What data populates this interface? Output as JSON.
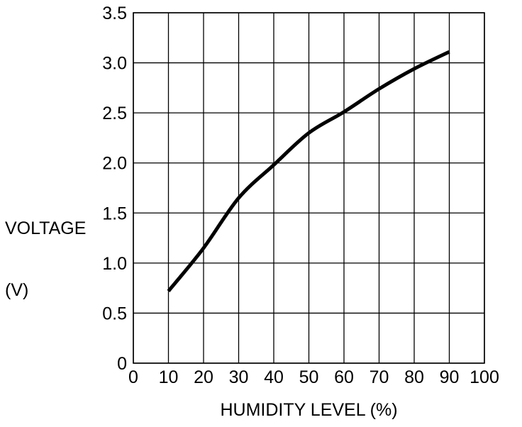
{
  "figure": {
    "background_color": "#ffffff",
    "line_color": "#000000",
    "grid_color": "#000000"
  },
  "chart_data": {
    "type": "line",
    "title": "",
    "xlabel": "HUMIDITY LEVEL (%)",
    "ylabel_line1": "VOLTAGE",
    "ylabel_line2": "(V)",
    "x": [
      10,
      20,
      30,
      40,
      50,
      60,
      70,
      80,
      90
    ],
    "y": [
      0.72,
      1.15,
      1.65,
      1.98,
      2.3,
      2.51,
      2.74,
      2.94,
      3.11
    ],
    "xlim": [
      0,
      100
    ],
    "ylim": [
      0,
      3.5
    ],
    "xticks": [
      "0",
      "10",
      "20",
      "30",
      "40",
      "50",
      "60",
      "70",
      "80",
      "90",
      "100"
    ],
    "yticks": [
      "3.5",
      "3.0",
      "2.5",
      "2.0",
      "1.5",
      "1.0",
      "0.5",
      "0"
    ],
    "grid": true,
    "legend": false,
    "curve_color": "#000000",
    "curve_width": 5
  }
}
